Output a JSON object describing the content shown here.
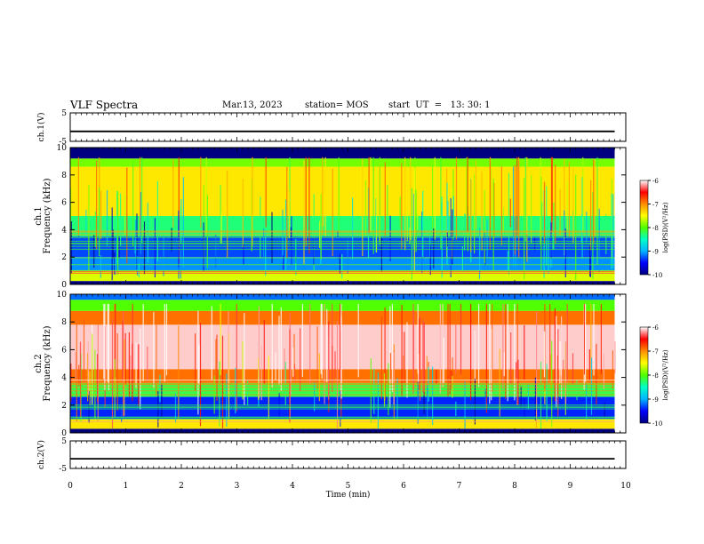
{
  "header": {
    "title": "VLF Spectra",
    "date": "Mar.13, 2023",
    "station": "station= MOS",
    "start_ut": "start  UT  =   13: 30: 1"
  },
  "chart_data": [
    {
      "type": "line",
      "panel": "ch1-waveform",
      "ylabel": "ch.1(V)",
      "ylim": [
        -5,
        5
      ],
      "yticks": [
        "5",
        "-5"
      ],
      "x": [
        0,
        9.8
      ],
      "values": [
        -1.5,
        -1.5
      ]
    },
    {
      "type": "heatmap",
      "panel": "ch1-spectrogram",
      "channel_label": "ch.1",
      "ylabel": "Frequency (kHz)",
      "ylim": [
        0,
        10
      ],
      "yticks": [
        "0",
        "2",
        "4",
        "6",
        "8",
        "10"
      ],
      "xlim": [
        0,
        10
      ],
      "data_extent_min": 9.8,
      "colorbar": {
        "label": "log(PSD)(V²/Hz)",
        "ticks": [
          "-6",
          "-7",
          "-8",
          "-9",
          "-10"
        ],
        "range": [
          -10,
          -6
        ]
      },
      "bands": [
        {
          "from": 0.0,
          "to": 0.25,
          "level": -10
        },
        {
          "from": 0.25,
          "to": 1.0,
          "level": -7.6
        },
        {
          "from": 1.0,
          "to": 2.0,
          "level": -9.1
        },
        {
          "from": 2.0,
          "to": 3.5,
          "level": -9.3
        },
        {
          "from": 3.5,
          "to": 5.0,
          "level": -8.3
        },
        {
          "from": 5.0,
          "to": 8.6,
          "level": -7.4
        },
        {
          "from": 8.6,
          "to": 9.2,
          "level": -7.9
        },
        {
          "from": 9.2,
          "to": 10.0,
          "level": -10
        }
      ]
    },
    {
      "type": "heatmap",
      "panel": "ch2-spectrogram",
      "channel_label": "ch.2",
      "ylabel": "Frequency (kHz)",
      "ylim": [
        0,
        10
      ],
      "yticks": [
        "0",
        "2",
        "4",
        "6",
        "8",
        "10"
      ],
      "xlim": [
        0,
        10
      ],
      "data_extent_min": 9.8,
      "colorbar": {
        "label": "log(PSD)(V²/Hz)",
        "ticks": [
          "-6",
          "-7",
          "-8",
          "-9",
          "-10"
        ],
        "range": [
          -10,
          -6
        ]
      },
      "bands": [
        {
          "from": 0.0,
          "to": 0.3,
          "level": -10
        },
        {
          "from": 0.3,
          "to": 1.0,
          "level": -7.4
        },
        {
          "from": 1.0,
          "to": 2.6,
          "level": -9.4
        },
        {
          "from": 2.6,
          "to": 3.6,
          "level": -8.2
        },
        {
          "from": 3.6,
          "to": 4.6,
          "level": -6.9
        },
        {
          "from": 4.6,
          "to": 7.8,
          "level": -6.1
        },
        {
          "from": 7.8,
          "to": 8.8,
          "level": -6.9
        },
        {
          "from": 8.8,
          "to": 9.6,
          "level": -8.0
        },
        {
          "from": 9.6,
          "to": 10.0,
          "level": -9.2
        }
      ]
    },
    {
      "type": "line",
      "panel": "ch2-waveform",
      "ylabel": "ch.2(V)",
      "ylim": [
        -5,
        5
      ],
      "yticks": [
        "5",
        "-5"
      ],
      "x": [
        0,
        9.8
      ],
      "values": [
        -1.5,
        -1.5
      ]
    }
  ],
  "xaxis": {
    "label": "Time (min)",
    "ticks": [
      "0",
      "1",
      "2",
      "3",
      "4",
      "5",
      "6",
      "7",
      "8",
      "9",
      "10"
    ],
    "xlim": [
      0,
      10
    ]
  },
  "colors": {
    "colormap": [
      "#000080",
      "#0000ff",
      "#00b4ff",
      "#00ffc8",
      "#50ff00",
      "#ffff00",
      "#ff8c00",
      "#ff0000",
      "#ffffff"
    ]
  }
}
